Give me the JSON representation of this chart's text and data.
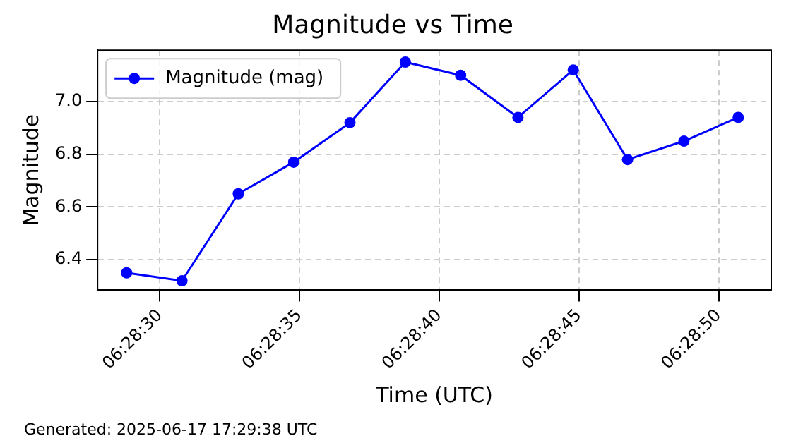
{
  "chart_data": {
    "type": "line",
    "title": "Magnitude vs Time",
    "xlabel": "Time (UTC)",
    "ylabel": "Magnitude",
    "annotations": [
      "Generated: 2025-06-17 17:29:38 UTC"
    ],
    "x": [
      6.47467,
      6.47522,
      6.47578,
      6.47633,
      6.47689,
      6.47744,
      6.47799,
      6.47856,
      6.47911,
      6.47965,
      6.48021,
      6.48075
    ],
    "series": [
      {
        "name": "Magnitude (mag)",
        "color": "#0000ff",
        "values": [
          6.35,
          6.32,
          6.65,
          6.77,
          6.92,
          7.15,
          7.1,
          6.94,
          7.12,
          6.78,
          6.85,
          6.94
        ]
      }
    ],
    "xlim": [
      6.474381,
      6.481078
    ],
    "xticks": [
      {
        "value": 6.475,
        "label": "06:28:30"
      },
      {
        "value": 6.476389,
        "label": "06:28:35"
      },
      {
        "value": 6.477778,
        "label": "06:28:40"
      },
      {
        "value": 6.479167,
        "label": "06:28:45"
      },
      {
        "value": 6.480556,
        "label": "06:28:50"
      }
    ],
    "ylim": [
      6.284,
      7.195
    ],
    "yticks": [
      {
        "value": 6.4,
        "label": "6.4"
      },
      {
        "value": 6.6,
        "label": "6.6"
      },
      {
        "value": 6.8,
        "label": "6.8"
      },
      {
        "value": 7,
        "label": "7.0"
      }
    ],
    "grid": true,
    "legend": "top left",
    "marker": "circle",
    "line_style": "solid"
  }
}
